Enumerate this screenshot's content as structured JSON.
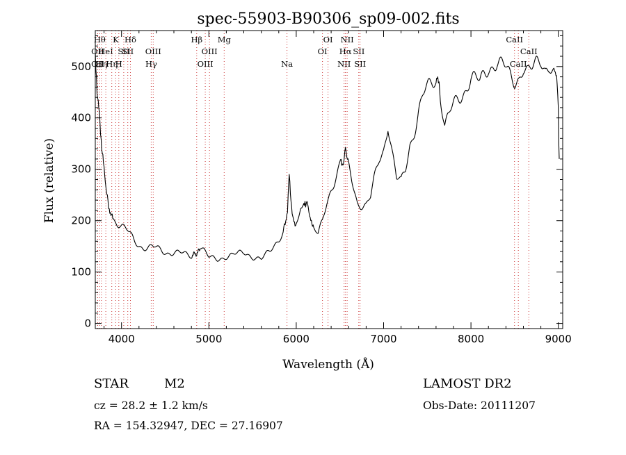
{
  "chart_data": {
    "type": "line",
    "title": "spec-55903-B90306_sp09-002.fits",
    "xlabel": "Wavelength (Å)",
    "ylabel": "Flux (relative)",
    "xlim": [
      3700,
      9050
    ],
    "ylim": [
      -10,
      570
    ],
    "xticks": [
      4000,
      5000,
      6000,
      7000,
      8000,
      9000
    ],
    "yticks": [
      0,
      100,
      200,
      300,
      400,
      500
    ],
    "grid": false,
    "series": [
      {
        "x": [
          3700,
          3720,
          3740,
          3760,
          3780,
          3800,
          3830,
          3860,
          3900,
          3950,
          4000,
          4050,
          4100,
          4150,
          4200,
          4250,
          4300,
          4400,
          4500,
          4600,
          4700,
          4800,
          4860,
          4900,
          4950,
          5000,
          5100,
          5200,
          5300,
          5400,
          5500,
          5600,
          5700,
          5800,
          5850,
          5880,
          5900,
          5920,
          5960,
          6000,
          6050,
          6080,
          6100,
          6130,
          6160,
          6200,
          6250,
          6300,
          6350,
          6400,
          6450,
          6500,
          6540,
          6563,
          6600,
          6650,
          6700,
          6750,
          6800,
          6850,
          6900,
          6950,
          7000,
          7050,
          7100,
          7150,
          7200,
          7250,
          7300,
          7350,
          7400,
          7450,
          7500,
          7550,
          7600,
          7620,
          7650,
          7700,
          7750,
          7800,
          7900,
          8000,
          8100,
          8200,
          8300,
          8400,
          8450,
          8500,
          8550,
          8600,
          8650,
          8700,
          8750,
          8800,
          8850,
          8900,
          8950,
          8980,
          9000,
          9010
        ],
        "y": [
          520,
          470,
          430,
          380,
          330,
          290,
          260,
          230,
          210,
          200,
          190,
          180,
          170,
          160,
          155,
          150,
          148,
          145,
          140,
          138,
          135,
          132,
          130,
          150,
          140,
          128,
          125,
          130,
          135,
          138,
          130,
          125,
          140,
          165,
          180,
          195,
          215,
          290,
          210,
          190,
          225,
          240,
          245,
          230,
          195,
          185,
          170,
          195,
          235,
          265,
          290,
          310,
          325,
          335,
          300,
          270,
          240,
          235,
          230,
          240,
          280,
          320,
          345,
          395,
          330,
          275,
          270,
          300,
          355,
          380,
          410,
          435,
          450,
          470,
          480,
          490,
          450,
          385,
          400,
          420,
          450,
          480,
          465,
          500,
          510,
          495,
          480,
          470,
          480,
          500,
          490,
          495,
          505,
          510,
          495,
          505,
          490,
          470,
          420,
          320
        ]
      }
    ],
    "lines": [
      {
        "w": 3727,
        "label": "OII",
        "row": 2
      },
      {
        "w": 3727,
        "label": "OII",
        "row": 3
      },
      {
        "w": 3750,
        "label": "Hθ",
        "row": 1
      },
      {
        "w": 3770,
        "label": "Hη",
        "row": 3
      },
      {
        "w": 3820,
        "label": "HeI",
        "row": 2
      },
      {
        "w": 3889,
        "label": "Hη",
        "row": 3
      },
      {
        "w": 3934,
        "label": "K",
        "row": 1
      },
      {
        "w": 3969,
        "label": "H",
        "row": 3
      },
      {
        "w": 4026,
        "label": "SII",
        "row": 2
      },
      {
        "w": 4072,
        "label": "SII",
        "row": 2
      },
      {
        "w": 4102,
        "label": "Hδ",
        "row": 1
      },
      {
        "w": 4340,
        "label": "Hγ",
        "row": 3
      },
      {
        "w": 4363,
        "label": "OIII",
        "row": 2
      },
      {
        "w": 4861,
        "label": "Hβ",
        "row": 1
      },
      {
        "w": 4959,
        "label": "OIII",
        "row": 3
      },
      {
        "w": 5007,
        "label": "OIII",
        "row": 2
      },
      {
        "w": 5175,
        "label": "Mg",
        "row": 1
      },
      {
        "w": 5894,
        "label": "Na",
        "row": 3
      },
      {
        "w": 6300,
        "label": "OI",
        "row": 2
      },
      {
        "w": 6364,
        "label": "OI",
        "row": 1
      },
      {
        "w": 6548,
        "label": "NII",
        "row": 3
      },
      {
        "w": 6563,
        "label": "Hα",
        "row": 2
      },
      {
        "w": 6583,
        "label": "NII",
        "row": 1
      },
      {
        "w": 6716,
        "label": "SII",
        "row": 2
      },
      {
        "w": 6731,
        "label": "SII",
        "row": 3
      },
      {
        "w": 8498,
        "label": "CaII",
        "row": 1
      },
      {
        "w": 8542,
        "label": "CaII",
        "row": 3
      },
      {
        "w": 8662,
        "label": "CaII",
        "row": 2
      }
    ]
  },
  "info": {
    "object_class": "STAR",
    "subclass": "M2",
    "survey": "LAMOST DR2",
    "cz": "cz = 28.2 ± 1.2 km/s",
    "obs_date": "Obs-Date: 20111207",
    "coords": "RA = 154.32947, DEC =  27.16907"
  }
}
